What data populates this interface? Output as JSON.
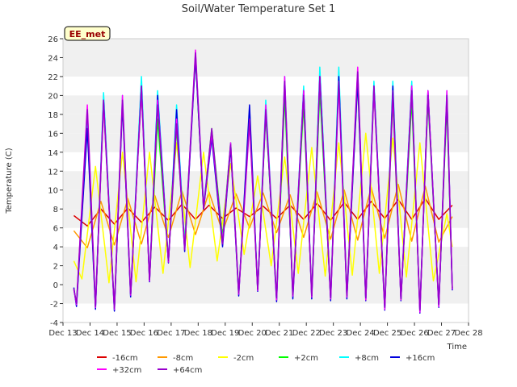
{
  "chart_data": {
    "type": "line",
    "title": "Soil/Water Temperature Set 1",
    "xlabel": "Time",
    "ylabel": "Temperature (C)",
    "site_label": "EE_met",
    "x_ticks": [
      "Dec 13",
      "Dec 14",
      "Dec 15",
      "Dec 16",
      "Dec 17",
      "Dec 18",
      "Dec 19",
      "Dec 20",
      "Dec 21",
      "Dec 22",
      "Dec 23",
      "Dec 24",
      "Dec 25",
      "Dec 26",
      "Dec 27",
      "Dec 28"
    ],
    "x_start": "Dec 13",
    "xlim_days": [
      0,
      15
    ],
    "ylim": [
      -4,
      26
    ],
    "y_ticks": [
      -4,
      -2,
      0,
      2,
      4,
      6,
      8,
      10,
      12,
      14,
      16,
      18,
      20,
      22,
      24,
      26
    ],
    "grid": "horizontal bands",
    "legend_position": "bottom",
    "series": [
      {
        "name": "-16cm",
        "color": "#dd0000",
        "x": [
          0.4,
          0.9,
          1.4,
          1.9,
          2.4,
          2.9,
          3.4,
          3.9,
          4.4,
          4.9,
          5.4,
          5.9,
          6.4,
          6.9,
          7.4,
          7.9,
          8.4,
          8.9,
          9.4,
          9.9,
          10.4,
          10.9,
          11.4,
          11.9,
          12.4,
          12.9,
          13.4,
          13.9,
          14.4
        ],
        "values": [
          7.3,
          6.2,
          8.0,
          6.4,
          8.1,
          6.6,
          8.2,
          6.8,
          8.5,
          6.9,
          8.4,
          7.0,
          8.1,
          7.2,
          8.3,
          7.0,
          8.4,
          6.9,
          8.6,
          6.8,
          8.7,
          6.9,
          8.8,
          7.0,
          9.0,
          6.9,
          9.1,
          6.9,
          8.4
        ]
      },
      {
        "name": "-8cm",
        "color": "#ff9900",
        "x": [
          0.4,
          0.9,
          1.4,
          1.9,
          2.4,
          2.9,
          3.4,
          3.9,
          4.4,
          4.9,
          5.4,
          5.9,
          6.4,
          6.9,
          7.4,
          7.9,
          8.4,
          8.9,
          9.4,
          9.9,
          10.4,
          10.9,
          11.4,
          11.9,
          12.4,
          12.9,
          13.4,
          13.9,
          14.4
        ],
        "values": [
          5.7,
          3.9,
          8.8,
          4.2,
          9.1,
          4.3,
          9.4,
          5.0,
          9.9,
          5.3,
          9.8,
          5.6,
          9.6,
          6.0,
          9.7,
          5.5,
          9.5,
          5.0,
          9.8,
          4.8,
          10.0,
          4.7,
          10.3,
          4.9,
          10.6,
          4.6,
          10.4,
          4.5,
          7.2
        ]
      },
      {
        "name": "-2cm",
        "color": "#ffff00",
        "x": [
          0.4,
          0.7,
          1.2,
          1.7,
          2.2,
          2.7,
          3.2,
          3.7,
          4.2,
          4.7,
          5.2,
          5.7,
          6.2,
          6.7,
          7.2,
          7.7,
          8.2,
          8.7,
          9.2,
          9.7,
          10.2,
          10.7,
          11.2,
          11.7,
          12.2,
          12.7,
          13.2,
          13.7,
          14.2,
          14.4
        ],
        "values": [
          2.5,
          0.6,
          12.5,
          0.2,
          14.0,
          0.3,
          14.0,
          1.2,
          15.0,
          1.8,
          14.0,
          2.5,
          12.8,
          3.2,
          11.5,
          2.0,
          13.5,
          1.2,
          14.5,
          0.9,
          15.0,
          1.0,
          16.0,
          1.2,
          15.5,
          0.8,
          15.0,
          0.4,
          7.5,
          4.0
        ]
      },
      {
        "name": "+2cm",
        "color": "#00ff00",
        "x": [
          0.4,
          0.5,
          0.9,
          1.2,
          1.5,
          1.9,
          2.2,
          2.5,
          2.9,
          3.2,
          3.5,
          3.9,
          4.2,
          4.5,
          4.9,
          5.2,
          5.5,
          5.9,
          6.2,
          6.5,
          6.9,
          7.2,
          7.5,
          7.9,
          8.2,
          8.5,
          8.9,
          9.2,
          9.5,
          9.9,
          10.2,
          10.5,
          10.9,
          11.2,
          11.5,
          11.9,
          12.2,
          12.5,
          12.9,
          13.2,
          13.5,
          13.9,
          14.2,
          14.4
        ],
        "values": [
          -0.5,
          -2.0,
          17.0,
          -2.3,
          19.0,
          -2.5,
          19.5,
          -1.0,
          20.5,
          0.5,
          17.5,
          2.5,
          16.5,
          4.5,
          24.0,
          8.0,
          16.5,
          5.0,
          15.0,
          -0.8,
          17.5,
          -0.5,
          18.0,
          -1.3,
          20.0,
          -1.0,
          19.0,
          -1.0,
          20.5,
          -1.3,
          22.0,
          -1.0,
          21.5,
          -1.5,
          20.5,
          -2.3,
          19.5,
          -1.5,
          19.5,
          -2.5,
          19.5,
          -2.0,
          19.0,
          -0.5
        ]
      },
      {
        "name": "+8cm",
        "color": "#00ffff",
        "x": [
          0.4,
          0.5,
          0.9,
          1.2,
          1.5,
          1.9,
          2.2,
          2.5,
          2.9,
          3.2,
          3.5,
          3.9,
          4.2,
          4.5,
          4.9,
          5.2,
          5.5,
          5.9,
          6.2,
          6.5,
          6.9,
          7.2,
          7.5,
          7.9,
          8.2,
          8.5,
          8.9,
          9.2,
          9.5,
          9.9,
          10.2,
          10.5,
          10.9,
          11.2,
          11.5,
          11.9,
          12.2,
          12.5,
          12.9,
          13.2,
          13.5,
          13.9,
          14.2,
          14.4
        ],
        "values": [
          -0.5,
          -2.2,
          17.5,
          -2.5,
          20.3,
          -2.7,
          20.0,
          -1.2,
          22.0,
          0.5,
          20.5,
          2.5,
          19.0,
          4.0,
          24.5,
          8.5,
          16.0,
          4.5,
          15.0,
          -1.0,
          18.5,
          -0.5,
          19.5,
          -1.5,
          22.0,
          -1.2,
          21.0,
          -1.2,
          23.0,
          -1.5,
          23.0,
          -1.2,
          22.5,
          -1.5,
          21.5,
          -2.5,
          21.5,
          -1.5,
          21.5,
          -2.8,
          20.5,
          -2.2,
          20.5,
          -0.5
        ]
      },
      {
        "name": "+16cm",
        "color": "#0000dd",
        "x": [
          0.4,
          0.5,
          0.9,
          1.2,
          1.5,
          1.9,
          2.2,
          2.5,
          2.9,
          3.2,
          3.5,
          3.9,
          4.2,
          4.5,
          4.9,
          5.2,
          5.5,
          5.9,
          6.2,
          6.5,
          6.9,
          7.2,
          7.5,
          7.9,
          8.2,
          8.5,
          8.9,
          9.2,
          9.5,
          9.9,
          10.2,
          10.5,
          10.9,
          11.2,
          11.5,
          11.9,
          12.2,
          12.5,
          12.9,
          13.2,
          13.5,
          13.9,
          14.2,
          14.4
        ],
        "values": [
          -0.3,
          -2.3,
          16.5,
          -2.6,
          19.5,
          -2.8,
          19.0,
          -1.3,
          21.0,
          0.3,
          20.0,
          2.3,
          18.5,
          3.5,
          24.0,
          8.0,
          15.5,
          4.0,
          14.5,
          -1.2,
          19.0,
          -0.7,
          18.5,
          -1.8,
          21.5,
          -1.5,
          20.5,
          -1.5,
          22.0,
          -1.7,
          22.0,
          -1.5,
          21.5,
          -1.7,
          21.0,
          -2.7,
          21.0,
          -1.7,
          21.0,
          -3.0,
          20.5,
          -2.4,
          20.0,
          -0.6
        ]
      },
      {
        "name": "+32cm",
        "color": "#ff00ff",
        "x": [
          0.4,
          0.5,
          0.9,
          1.2,
          1.5,
          1.9,
          2.2,
          2.5,
          2.9,
          3.2,
          3.5,
          3.9,
          4.2,
          4.5,
          4.9,
          5.2,
          5.5,
          5.9,
          6.2,
          6.5,
          6.9,
          7.2,
          7.5,
          7.9,
          8.2,
          8.5,
          8.9,
          9.2,
          9.5,
          9.9,
          10.2,
          10.5,
          10.9,
          11.2,
          11.5,
          11.9,
          12.2,
          12.5,
          12.9,
          13.2,
          13.5,
          13.9,
          14.2,
          14.4
        ],
        "values": [
          -0.5,
          -2.1,
          19.0,
          -2.4,
          19.0,
          -2.6,
          20.0,
          -1.1,
          20.5,
          0.4,
          19.5,
          2.4,
          17.5,
          3.8,
          24.8,
          8.2,
          16.0,
          4.5,
          15.0,
          -1.0,
          17.0,
          -0.6,
          19.0,
          -1.6,
          22.0,
          -1.2,
          20.5,
          -1.3,
          22.0,
          -1.5,
          21.0,
          -1.3,
          23.0,
          -1.6,
          20.5,
          -2.6,
          20.0,
          -1.6,
          21.0,
          -2.9,
          20.5,
          -2.3,
          20.5,
          -0.5
        ]
      },
      {
        "name": "+64cm",
        "color": "#9900cc",
        "x": [
          0.4,
          0.5,
          0.9,
          1.2,
          1.5,
          1.9,
          2.2,
          2.5,
          2.9,
          3.2,
          3.5,
          3.9,
          4.2,
          4.5,
          4.9,
          5.2,
          5.5,
          5.9,
          6.2,
          6.5,
          6.9,
          7.2,
          7.5,
          7.9,
          8.2,
          8.5,
          8.9,
          9.2,
          9.5,
          9.9,
          10.2,
          10.5,
          10.9,
          11.2,
          11.5,
          11.9,
          12.2,
          12.5,
          12.9,
          13.2,
          13.5,
          13.9,
          14.2,
          14.4
        ],
        "values": [
          -0.4,
          -2.0,
          18.5,
          -2.3,
          19.5,
          -2.5,
          19.5,
          -1.0,
          21.0,
          0.5,
          19.0,
          2.5,
          17.0,
          3.7,
          24.5,
          8.0,
          16.5,
          4.3,
          14.8,
          -0.9,
          17.5,
          -0.5,
          18.5,
          -1.4,
          21.5,
          -1.1,
          20.0,
          -1.2,
          22.0,
          -1.4,
          21.5,
          -1.2,
          22.5,
          -1.4,
          21.0,
          -2.4,
          20.5,
          -1.5,
          20.5,
          -2.7,
          20.0,
          -2.1,
          20.0,
          -0.4
        ]
      }
    ]
  }
}
